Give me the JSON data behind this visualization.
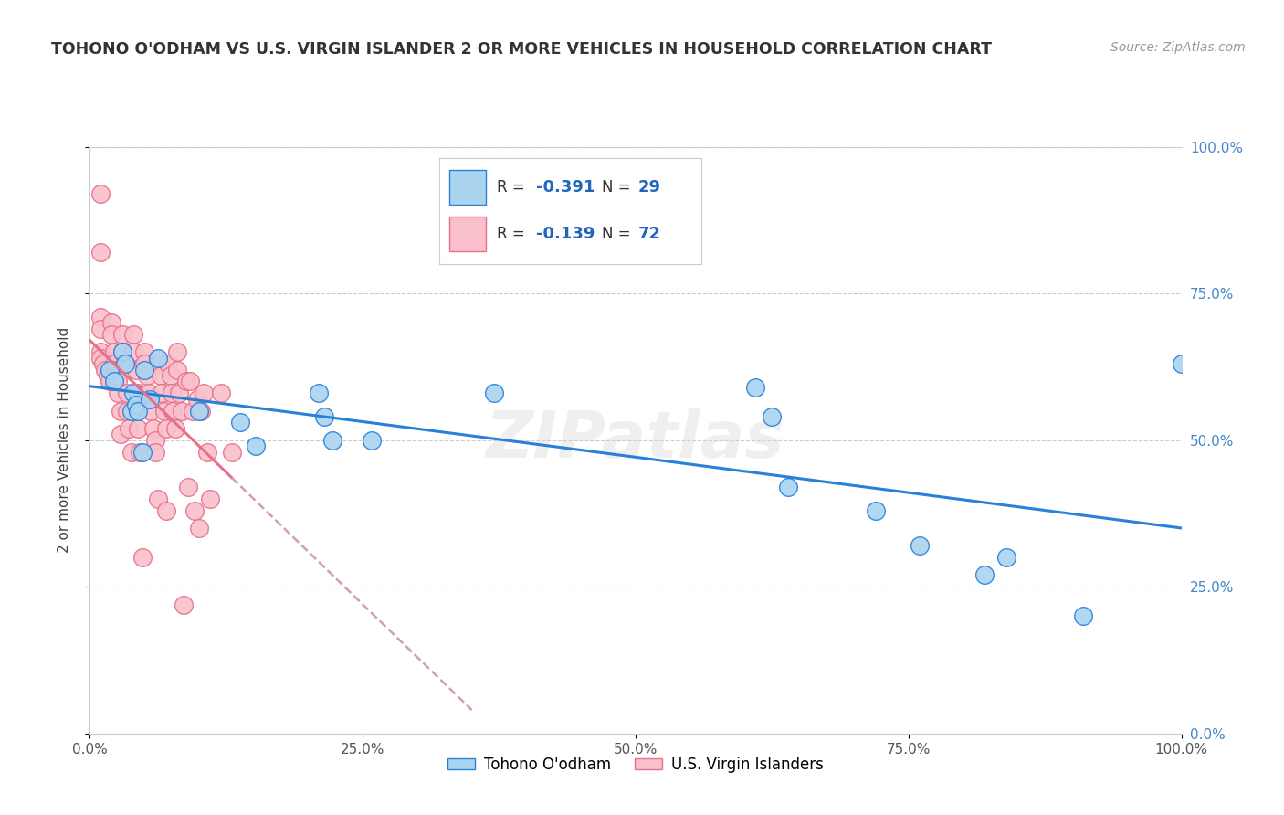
{
  "title": "TOHONO O'ODHAM VS U.S. VIRGIN ISLANDER 2 OR MORE VEHICLES IN HOUSEHOLD CORRELATION CHART",
  "source": "Source: ZipAtlas.com",
  "ylabel": "2 or more Vehicles in Household",
  "legend_label1": "Tohono O'odham",
  "legend_label2": "U.S. Virgin Islanders",
  "r1": -0.391,
  "n1": 29,
  "r2": -0.139,
  "n2": 72,
  "color_blue": "#aad4f0",
  "color_pink": "#f9c0cb",
  "trendline_blue": "#2980d9",
  "trendline_pink": "#e8708a",
  "trendline_pink_dash_color": "#d0a0b0",
  "blue_scatter_x": [
    0.018,
    0.022,
    0.03,
    0.032,
    0.038,
    0.04,
    0.042,
    0.044,
    0.048,
    0.05,
    0.055,
    0.062,
    0.1,
    0.138,
    0.152,
    0.21,
    0.215,
    0.222,
    0.258,
    0.37,
    0.61,
    0.625,
    0.64,
    0.72,
    0.76,
    0.82,
    0.84,
    0.91,
    1.0
  ],
  "blue_scatter_y": [
    0.62,
    0.6,
    0.65,
    0.63,
    0.55,
    0.58,
    0.56,
    0.55,
    0.48,
    0.62,
    0.57,
    0.64,
    0.55,
    0.53,
    0.49,
    0.58,
    0.54,
    0.5,
    0.5,
    0.58,
    0.59,
    0.54,
    0.42,
    0.38,
    0.32,
    0.27,
    0.3,
    0.2,
    0.63
  ],
  "pink_scatter_x": [
    0.01,
    0.01,
    0.01,
    0.01,
    0.01,
    0.01,
    0.012,
    0.014,
    0.016,
    0.018,
    0.02,
    0.02,
    0.022,
    0.022,
    0.024,
    0.024,
    0.026,
    0.026,
    0.028,
    0.028,
    0.03,
    0.03,
    0.032,
    0.034,
    0.034,
    0.036,
    0.038,
    0.04,
    0.04,
    0.042,
    0.044,
    0.044,
    0.046,
    0.048,
    0.05,
    0.05,
    0.052,
    0.054,
    0.056,
    0.058,
    0.06,
    0.06,
    0.062,
    0.064,
    0.065,
    0.066,
    0.068,
    0.07,
    0.07,
    0.072,
    0.074,
    0.075,
    0.076,
    0.078,
    0.08,
    0.08,
    0.082,
    0.084,
    0.086,
    0.088,
    0.09,
    0.092,
    0.094,
    0.096,
    0.098,
    0.1,
    0.102,
    0.104,
    0.108,
    0.11,
    0.12,
    0.13
  ],
  "pink_scatter_y": [
    0.92,
    0.82,
    0.71,
    0.69,
    0.65,
    0.64,
    0.63,
    0.62,
    0.61,
    0.6,
    0.7,
    0.68,
    0.65,
    0.63,
    0.62,
    0.61,
    0.6,
    0.58,
    0.55,
    0.51,
    0.68,
    0.65,
    0.63,
    0.58,
    0.55,
    0.52,
    0.48,
    0.68,
    0.65,
    0.62,
    0.58,
    0.52,
    0.48,
    0.3,
    0.65,
    0.63,
    0.61,
    0.58,
    0.55,
    0.52,
    0.5,
    0.48,
    0.4,
    0.63,
    0.61,
    0.58,
    0.55,
    0.52,
    0.38,
    0.63,
    0.61,
    0.58,
    0.55,
    0.52,
    0.65,
    0.62,
    0.58,
    0.55,
    0.22,
    0.6,
    0.42,
    0.6,
    0.55,
    0.38,
    0.57,
    0.35,
    0.55,
    0.58,
    0.48,
    0.4,
    0.58,
    0.48
  ],
  "xlim": [
    0.0,
    1.0
  ],
  "ylim": [
    0.0,
    1.0
  ],
  "xticks": [
    0.0,
    0.25,
    0.5,
    0.75,
    1.0
  ],
  "xtick_labels": [
    "0.0%",
    "25.0%",
    "50.0%",
    "75.0%",
    "100.0%"
  ],
  "ytick_labels": [
    "0.0%",
    "25.0%",
    "50.0%",
    "75.0%",
    "100.0%"
  ]
}
